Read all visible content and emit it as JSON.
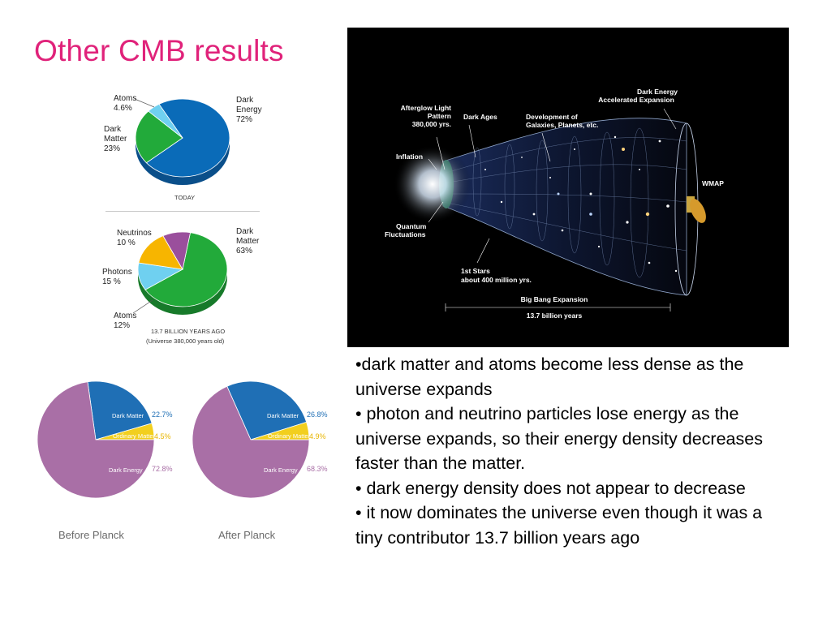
{
  "title": "Other CMB results",
  "today_chart": {
    "caption": "TODAY",
    "labels": {
      "atoms": [
        "Atoms",
        "4.6%"
      ],
      "dark_matter": [
        "Dark",
        "Matter",
        "23%"
      ],
      "dark_energy": [
        "Dark",
        "Energy",
        "72%"
      ]
    }
  },
  "early_chart": {
    "caption_line1": "13.7 BILLION YEARS AGO",
    "caption_line2": "(Universe 380,000 years old)",
    "labels": {
      "neutrinos": [
        "Neutrinos",
        "10 %"
      ],
      "photons": [
        "Photons",
        "15 %"
      ],
      "atoms": [
        "Atoms",
        "12%"
      ],
      "dark_matter": [
        "Dark",
        "Matter",
        "63%"
      ]
    }
  },
  "planck_before": {
    "caption": "Before Planck",
    "inner_labels": {
      "dark_matter": "Dark Matter",
      "ordinary_matter": "Ordinary Matter",
      "dark_energy": "Dark Energy"
    },
    "values": {
      "dark_matter": "22.7%",
      "ordinary_matter": "4.5%",
      "dark_energy": "72.8%"
    }
  },
  "planck_after": {
    "caption": "After Planck",
    "inner_labels": {
      "dark_matter": "Dark Matter",
      "ordinary_matter": "Ordinary Matter",
      "dark_energy": "Dark Energy"
    },
    "values": {
      "dark_matter": "26.8%",
      "ordinary_matter": "4.9%",
      "dark_energy": "68.3%"
    }
  },
  "wmap_labels": {
    "afterglow": [
      "Afterglow Light",
      "Pattern",
      "380,000 yrs."
    ],
    "dark_ages": "Dark Ages",
    "development": [
      "Development of",
      "Galaxies, Planets, etc."
    ],
    "dark_energy": [
      "Dark Energy",
      "Accelerated Expansion"
    ],
    "inflation": "Inflation",
    "wmap": "WMAP",
    "quantum": [
      "Quantum",
      "Fluctuations"
    ],
    "first_stars": [
      "1st Stars",
      "about 400 million yrs."
    ],
    "big_bang": "Big Bang Expansion",
    "age": "13.7 billion years"
  },
  "bullets": [
    "•dark matter and atoms become less dense as the universe expands",
    "• photon and neutrino particles lose energy as the universe expands, so their energy density decreases faster than the matter.",
    "• dark energy density does not appear to decrease",
    "• it now dominates the universe even though it was a tiny contributor 13.7 billion years ago"
  ],
  "colors": {
    "title": "#e0227a",
    "dark_energy_blue": "#0a6bb8",
    "dark_matter_green": "#22aa3a",
    "atoms_light_blue": "#6fd0f0",
    "photons_orange": "#f7b500",
    "neutrinos_purple": "#9a4f9c",
    "planck_dark_energy": "#a96fa6",
    "planck_dark_matter": "#1f6fb5",
    "planck_ordinary": "#f2cf1e"
  },
  "chart_data": [
    {
      "type": "pie",
      "caption": "TODAY",
      "categories": [
        "Dark Energy",
        "Dark Matter",
        "Atoms"
      ],
      "values": [
        72,
        23,
        4.6
      ]
    },
    {
      "type": "pie",
      "caption": "13.7 BILLION YEARS AGO (Universe 380,000 years old)",
      "categories": [
        "Dark Matter",
        "Atoms",
        "Photons",
        "Neutrinos"
      ],
      "values": [
        63,
        12,
        15,
        10
      ]
    },
    {
      "type": "pie",
      "caption": "Before Planck",
      "categories": [
        "Dark Matter",
        "Ordinary Matter",
        "Dark Energy"
      ],
      "values": [
        22.7,
        4.5,
        72.8
      ]
    },
    {
      "type": "pie",
      "caption": "After Planck",
      "categories": [
        "Dark Matter",
        "Ordinary Matter",
        "Dark Energy"
      ],
      "values": [
        26.8,
        4.9,
        68.3
      ]
    }
  ]
}
